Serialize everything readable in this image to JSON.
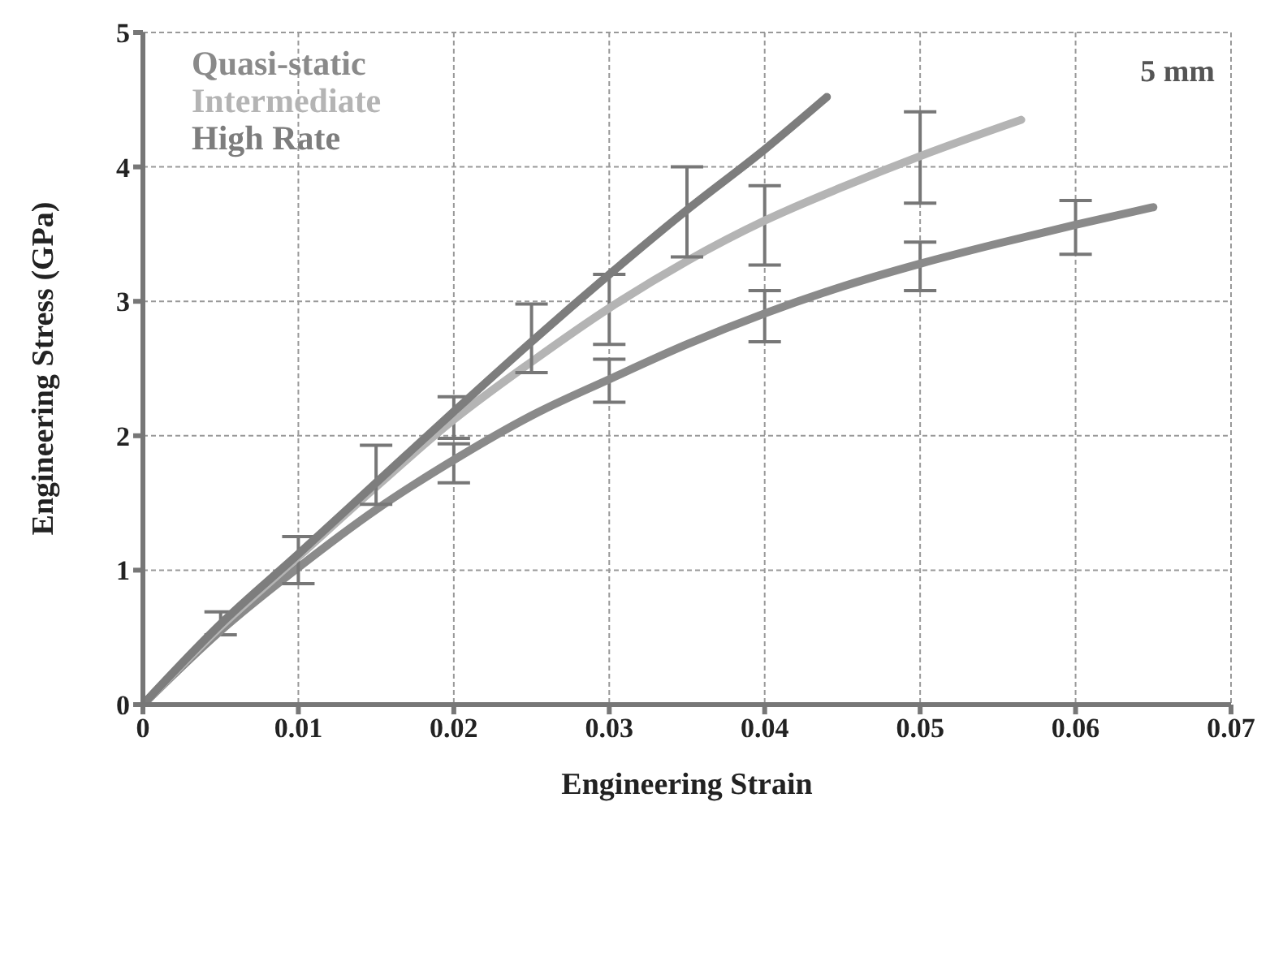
{
  "chart_data": {
    "type": "line",
    "xlabel": "Engineering Strain",
    "ylabel": "Engineering Stress (GPa)",
    "xlim": [
      0,
      0.07
    ],
    "xticks": [
      0,
      0.01,
      0.02,
      0.03,
      0.04,
      0.05,
      0.06,
      0.07
    ],
    "ylim": [
      0,
      5
    ],
    "yticks": [
      0,
      1,
      2,
      3,
      4,
      5
    ],
    "grid": true,
    "legend": "top left",
    "marker": "none",
    "line_style": "solid",
    "annotations": [
      "5 mm"
    ],
    "series": [
      {
        "name": "Quasi-static",
        "color": "#8a8a8a",
        "x": [
          0,
          0.005,
          0.01,
          0.015,
          0.02,
          0.025,
          0.03,
          0.035,
          0.04,
          0.045,
          0.05,
          0.055,
          0.06,
          0.065
        ],
        "values": [
          0,
          0.55,
          1.02,
          1.45,
          1.82,
          2.15,
          2.42,
          2.68,
          2.91,
          3.11,
          3.28,
          3.43,
          3.57,
          3.7
        ],
        "errors": [
          null,
          [
            0.52,
            0.69
          ],
          null,
          null,
          [
            1.65,
            1.94
          ],
          null,
          [
            2.25,
            2.57
          ],
          null,
          [
            2.7,
            3.08
          ],
          null,
          [
            3.08,
            3.44
          ],
          null,
          [
            3.35,
            3.75
          ],
          null
        ]
      },
      {
        "name": "Intermediate",
        "color": "#b4b4b4",
        "x": [
          0,
          0.005,
          0.01,
          0.015,
          0.02,
          0.025,
          0.03,
          0.035,
          0.04,
          0.045,
          0.05,
          0.0565
        ],
        "values": [
          0,
          0.58,
          1.1,
          1.62,
          2.12,
          2.55,
          2.95,
          3.3,
          3.6,
          3.85,
          4.08,
          4.35
        ],
        "errors": [
          null,
          null,
          [
            0.9,
            1.25
          ],
          null,
          [
            1.98,
            2.29
          ],
          null,
          [
            2.68,
            3.2
          ],
          null,
          [
            3.27,
            3.86
          ],
          null,
          [
            3.73,
            4.41
          ],
          null
        ]
      },
      {
        "name": "High Rate",
        "color": "#7d7d7d",
        "x": [
          0,
          0.005,
          0.01,
          0.015,
          0.02,
          0.025,
          0.03,
          0.035,
          0.04,
          0.044
        ],
        "values": [
          0,
          0.6,
          1.12,
          1.65,
          2.18,
          2.7,
          3.2,
          3.68,
          4.13,
          4.52
        ],
        "errors": [
          null,
          null,
          null,
          [
            1.49,
            1.93
          ],
          null,
          [
            2.47,
            2.98
          ],
          null,
          [
            3.33,
            4.0
          ],
          null,
          null
        ]
      }
    ]
  }
}
